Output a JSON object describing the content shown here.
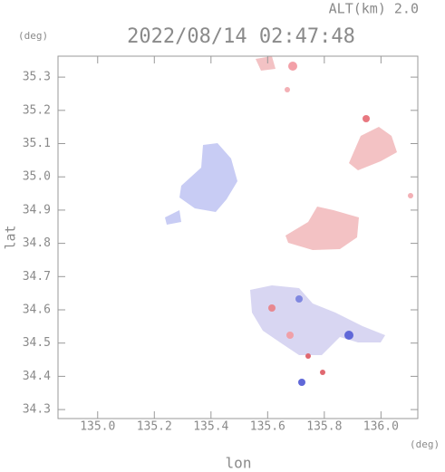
{
  "chart_data": {
    "type": "field",
    "title": "2022/08/14 02:47:48",
    "subtitle": "ALT(km) 2.0",
    "y_unit": "(deg)",
    "x_unit": "(deg)",
    "xlabel": "lon",
    "ylabel": "lat",
    "xlim": [
      134.86,
      136.13
    ],
    "ylim": [
      34.273,
      35.363
    ],
    "xticks": [
      {
        "value": 135.0,
        "label": "135.0"
      },
      135.2,
      135.4,
      135.6,
      135.8,
      {
        "value": 136.0,
        "label": "136.0"
      }
    ],
    "yticks": [
      34.3,
      34.4,
      34.5,
      34.6,
      34.7,
      34.8,
      34.9,
      {
        "value": 35.0,
        "label": "35.0"
      },
      35.1,
      35.2,
      35.3
    ],
    "grid": false
  }
}
